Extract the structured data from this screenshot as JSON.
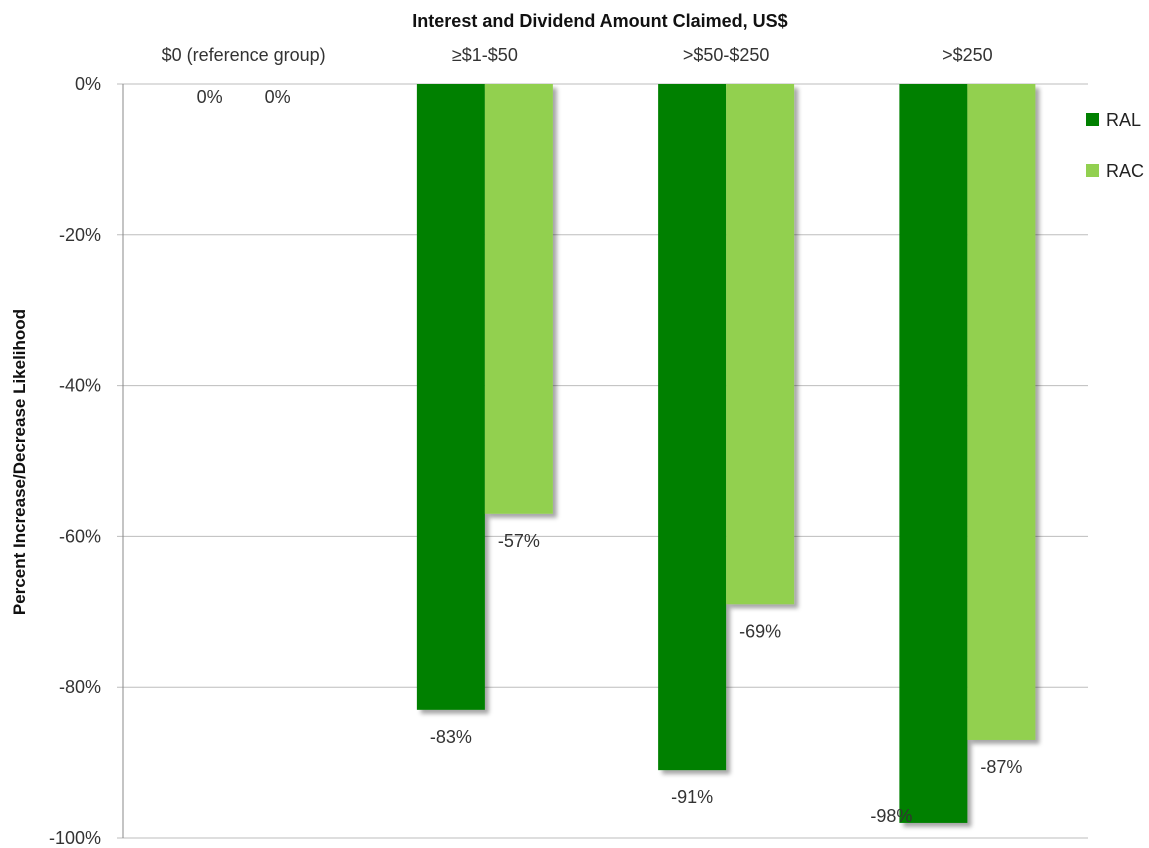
{
  "chart_data": {
    "type": "bar",
    "title": "Interest and Dividend Amount Claimed, US$",
    "xlabel": "",
    "ylabel": "Percent Increase/Decrease Likelihood",
    "categories": [
      "$0 (reference group)",
      "≥$1-$50",
      ">$50-$250",
      ">$250"
    ],
    "series": [
      {
        "name": "RAL",
        "values": [
          0,
          -83,
          -91,
          -98
        ],
        "labels": [
          "0%",
          "-83%",
          "-91%",
          "-98%"
        ],
        "color": "#008000"
      },
      {
        "name": "RAC",
        "values": [
          0,
          -57,
          -69,
          -87
        ],
        "labels": [
          "0%",
          "-57%",
          "-69%",
          "-87%"
        ],
        "color": "#92D050"
      }
    ],
    "ylim": [
      -100,
      0
    ],
    "yticks": [
      0,
      -20,
      -40,
      -60,
      -80,
      -100
    ],
    "ytick_labels": [
      "0%",
      "-20%",
      "-40%",
      "-60%",
      "-80%",
      "-100%"
    ],
    "grid": true,
    "legend_position": "right",
    "category_axis_position": "top"
  }
}
